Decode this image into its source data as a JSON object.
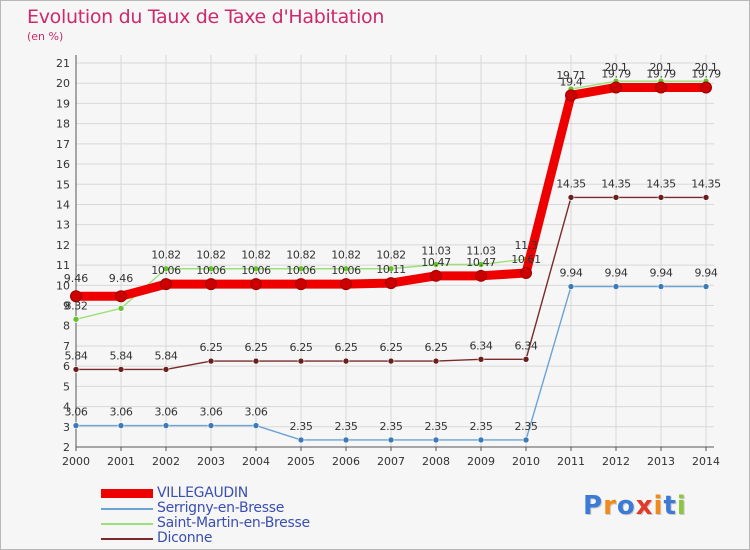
{
  "header": {
    "title": "Evolution du Taux de Taxe d'Habitation",
    "subtitle": "(en %)"
  },
  "logo": {
    "text": "Proxiti",
    "letter_colors": [
      "#3c7ad6",
      "#f08a1c",
      "#3c7ad6",
      "#e23a2a",
      "#f08a1c",
      "#3c7ad6",
      "#8cc63f"
    ]
  },
  "colors": {
    "title": "#cc2a6a",
    "legend_text": "#3a4fb0",
    "grid": "#d8d8d8",
    "axis": "#555555"
  },
  "chart_data": {
    "type": "line",
    "title": "Evolution du Taux de Taxe d'Habitation",
    "ylabel": "(en %)",
    "x": [
      2000,
      2001,
      2002,
      2003,
      2004,
      2005,
      2006,
      2007,
      2008,
      2009,
      2010,
      2011,
      2012,
      2013,
      2014
    ],
    "ylim": [
      2,
      21
    ],
    "yticks": [
      2,
      3,
      4,
      5,
      6,
      7,
      8,
      9,
      10,
      11,
      12,
      13,
      14,
      15,
      16,
      17,
      18,
      19,
      20,
      21
    ],
    "grid": true,
    "legend_position": "bottom-left",
    "series": [
      {
        "name": "VILLEGAUDIN",
        "color": "#ee0000",
        "point_color": "#cc0000",
        "values": [
          9.46,
          9.46,
          10.06,
          10.06,
          10.06,
          10.06,
          10.06,
          10.11,
          10.47,
          10.47,
          10.61,
          19.4,
          19.79,
          19.79,
          19.79
        ],
        "labels": [
          "",
          "",
          "10.06",
          "10.06",
          "10.06",
          "10.06",
          "10.06",
          "10.11",
          "10.47",
          "10.47",
          "10.61",
          "19.4",
          "19.79",
          "19.79",
          "19.79"
        ]
      },
      {
        "name": "Serrigny-en-Bresse",
        "color": "#6aa3d5",
        "point_color": "#3d7ab8",
        "values": [
          3.06,
          3.06,
          3.06,
          3.06,
          3.06,
          2.35,
          2.35,
          2.35,
          2.35,
          2.35,
          2.35,
          9.94,
          9.94,
          9.94,
          9.94
        ],
        "labels": [
          "3.06",
          "3.06",
          "3.06",
          "3.06",
          "3.06",
          "2.35",
          "2.35",
          "2.35",
          "2.35",
          "2.35",
          "2.35",
          "9.94",
          "9.94",
          "9.94",
          "9.94"
        ]
      },
      {
        "name": "Saint-Martin-en-Bresse",
        "color": "#9ce07a",
        "point_color": "#66c22e",
        "values": [
          8.32,
          8.86,
          10.82,
          10.82,
          10.82,
          10.82,
          10.82,
          10.82,
          11.03,
          11.03,
          11.3,
          19.71,
          20.1,
          20.1,
          20.1
        ],
        "labels": [
          "8.32",
          "",
          "10.82",
          "10.82",
          "10.82",
          "10.82",
          "10.82",
          "10.82",
          "11.03",
          "11.03",
          "11.3",
          "19.71",
          "20.1",
          "20.1",
          "20.1"
        ]
      },
      {
        "name": "Diconne",
        "color": "#7a2a2a",
        "point_color": "#6a1e1e",
        "values": [
          5.84,
          5.84,
          5.84,
          6.25,
          6.25,
          6.25,
          6.25,
          6.25,
          6.25,
          6.34,
          6.34,
          14.35,
          14.35,
          14.35,
          14.35
        ],
        "labels": [
          "5.84",
          "5.84",
          "5.84",
          "6.25",
          "6.25",
          "6.25",
          "6.25",
          "6.25",
          "6.25",
          "6.34",
          "6.34",
          "14.35",
          "14.35",
          "14.35",
          "14.35"
        ]
      }
    ]
  }
}
